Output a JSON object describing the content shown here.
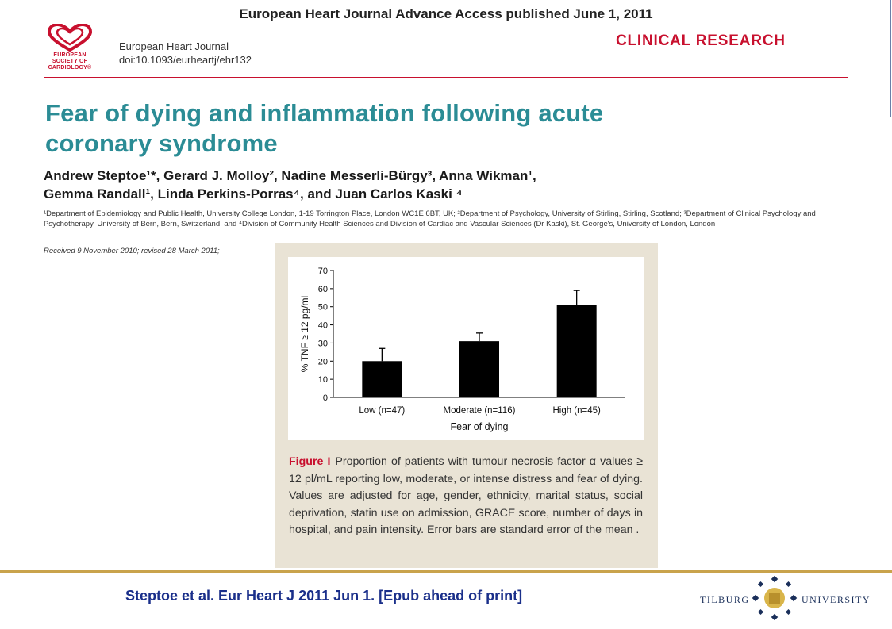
{
  "header": {
    "advance_access": "European Heart Journal Advance Access published June 1, 2011",
    "society_logo_text": "EUROPEAN SOCIETY OF CARDIOLOGY®",
    "journal_name": "European Heart Journal",
    "doi": "doi:10.1093/eurheartj/ehr132",
    "section": "CLINICAL RESEARCH"
  },
  "article": {
    "title_line1": "Fear of dying and inflammation following acute",
    "title_line2": "coronary syndrome",
    "authors_line1": "Andrew Steptoe¹*, Gerard J. Molloy², Nadine Messerli-Bürgy³, Anna Wikman¹,",
    "authors_line2": "Gemma Randall¹, Linda Perkins-Porras⁴, and Juan Carlos Kaski ⁴",
    "affiliations": "¹Department of Epidemiology and Public Health, University College London, 1-19 Torrington Place, London WC1E 6BT, UK; ²Department of Psychology, University of Stirling, Stirling, Scotland; ³Department of Clinical Psychology and Psychotherapy, University of Bern, Bern, Switzerland; and ⁴Division of Community Health Sciences and Division of Cardiac and Vascular Sciences (Dr Kaski), St. George's, University of London, London",
    "received": "Received 9 November 2010; revised 28 March 2011;"
  },
  "figure": {
    "label": "Figure I",
    "caption": "Proportion of patients with tumour necrosis factor α values ≥ 12 pl/mL reporting low, moderate, or intense distress and fear of dying. Values are adjusted for age, gender, ethnicity, marital status, social deprivation, statin use on admission, GRACE score, number of days in hospital, and pain intensity. Error bars are standard error of the mean ."
  },
  "chart_data": {
    "type": "bar",
    "categories": [
      "Low (n=47)",
      "Moderate (n=116)",
      "High (n=45)"
    ],
    "values": [
      20,
      31,
      51
    ],
    "error": [
      7,
      4.5,
      8
    ],
    "xlabel": "Fear of dying",
    "ylabel": "% TNF ≥ 12 pg/ml",
    "ylim": [
      0,
      70
    ],
    "yticks": [
      0,
      10,
      20,
      30,
      40,
      50,
      60,
      70
    ],
    "grid": false,
    "colors": {
      "bar": "#000000"
    }
  },
  "footer": {
    "citation": "Steptoe et al. Eur Heart J 2011 Jun 1. [Epub ahead of print]",
    "university_left": "TILBURG",
    "university_right": "UNIVERSITY"
  },
  "colors": {
    "title": "#2b8c95",
    "accent_red": "#c8102e",
    "citation_blue": "#1a2f8a",
    "panel_bg": "#e9e3d5",
    "footer_rule": "#c9a34c"
  }
}
